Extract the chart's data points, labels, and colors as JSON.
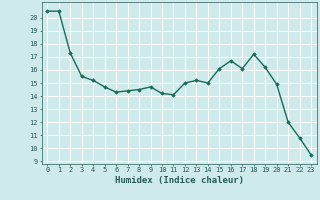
{
  "x": [
    0,
    1,
    2,
    3,
    4,
    5,
    6,
    7,
    8,
    9,
    10,
    11,
    12,
    13,
    14,
    15,
    16,
    17,
    18,
    19,
    20,
    21,
    22,
    23
  ],
  "y": [
    20.5,
    20.5,
    17.3,
    15.5,
    15.2,
    14.7,
    14.3,
    14.4,
    14.5,
    14.7,
    14.2,
    14.1,
    15.0,
    15.2,
    15.0,
    16.1,
    16.7,
    16.1,
    17.2,
    16.2,
    14.9,
    12.0,
    10.8,
    9.5
  ],
  "xlim": [
    -0.5,
    23.5
  ],
  "ylim": [
    8.8,
    21.2
  ],
  "yticks": [
    9,
    10,
    11,
    12,
    13,
    14,
    15,
    16,
    17,
    18,
    19,
    20
  ],
  "xticks": [
    0,
    1,
    2,
    3,
    4,
    5,
    6,
    7,
    8,
    9,
    10,
    11,
    12,
    13,
    14,
    15,
    16,
    17,
    18,
    19,
    20,
    21,
    22,
    23
  ],
  "xlabel": "Humidex (Indice chaleur)",
  "line_color": "#1a6b5a",
  "marker": "D",
  "marker_size": 1.8,
  "line_width": 1.0,
  "bg_color": "#ceeaea",
  "grid_color": "#ffffff",
  "label_color": "#2a5a5a",
  "xlabel_fontsize": 6.5,
  "tick_fontsize": 5.0
}
